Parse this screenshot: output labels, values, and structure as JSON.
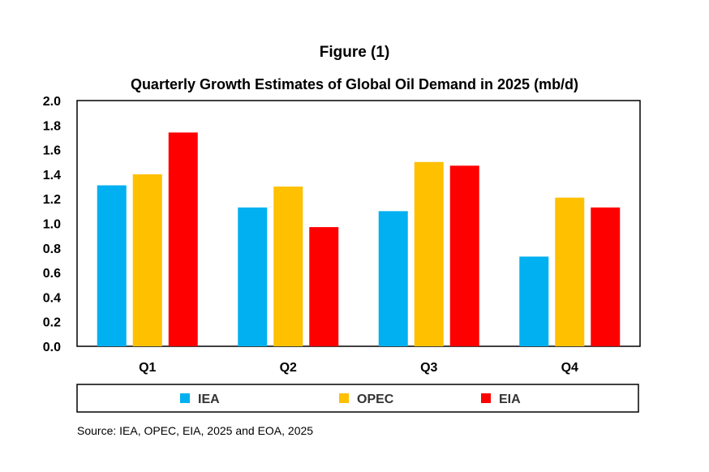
{
  "figure_label": "Figure (1)",
  "source_note": "Source: IEA, OPEC, EIA, 2025 and EOA, 2025",
  "chart_data": {
    "type": "bar",
    "title": "Quarterly Growth Estimates of Global Oil Demand in 2025 (mb/d)",
    "xlabel": "",
    "ylabel": "",
    "categories": [
      "Q1",
      "Q2",
      "Q3",
      "Q4"
    ],
    "series": [
      {
        "name": "IEA",
        "color": "#00B0F0",
        "values": [
          1.31,
          1.13,
          1.1,
          0.73
        ]
      },
      {
        "name": "OPEC",
        "color": "#FFC000",
        "values": [
          1.4,
          1.3,
          1.5,
          1.21
        ]
      },
      {
        "name": "EIA",
        "color": "#FF0000",
        "values": [
          1.74,
          0.97,
          1.47,
          1.13
        ]
      }
    ],
    "ylim": [
      0,
      2.0
    ],
    "yticks": [
      "0.0",
      "0.2",
      "0.4",
      "0.6",
      "0.8",
      "1.0",
      "1.2",
      "1.4",
      "1.6",
      "1.8",
      "2.0"
    ],
    "ytick_values": [
      0,
      0.2,
      0.4,
      0.6,
      0.8,
      1.0,
      1.2,
      1.4,
      1.6,
      1.8,
      2.0
    ],
    "grid": false,
    "legend_position": "bottom"
  }
}
